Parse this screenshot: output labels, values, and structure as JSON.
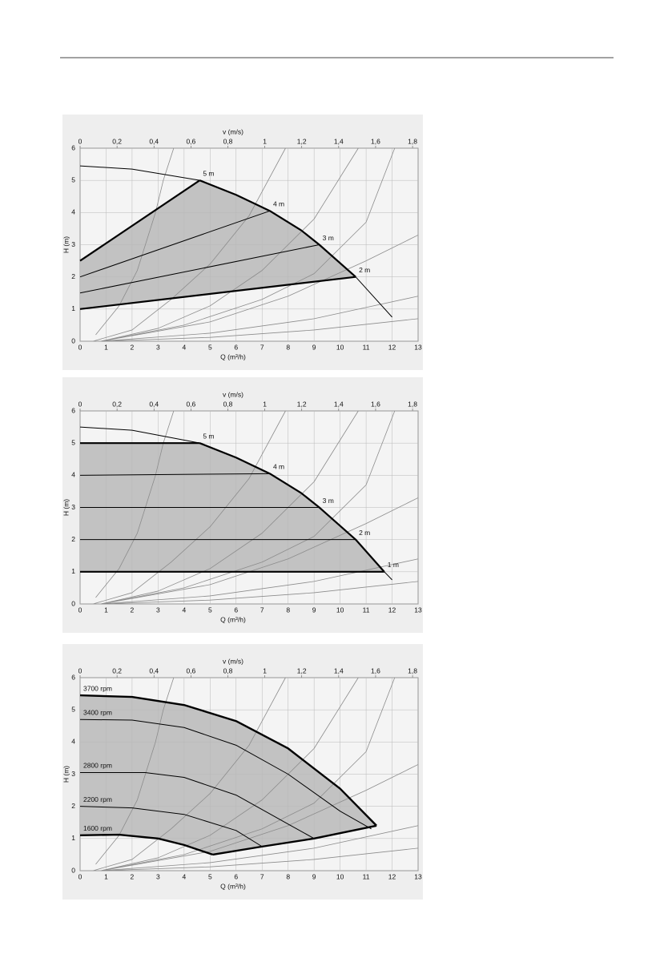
{
  "chart_data": [
    {
      "type": "line",
      "x2label": "v (m/s)",
      "xlabel": "Q (m³/h)",
      "ylabel": "H (m)",
      "xlim": [
        0,
        13
      ],
      "xticks": [
        0,
        1,
        2,
        3,
        4,
        5,
        6,
        7,
        8,
        9,
        10,
        11,
        12,
        13
      ],
      "x2lim": [
        0,
        1.83
      ],
      "x2ticks": [
        0,
        {
          "value": 0.2,
          "label": "0,2"
        },
        {
          "value": 0.4,
          "label": "0,4"
        },
        {
          "value": 0.6,
          "label": "0,6"
        },
        {
          "value": 0.8,
          "label": "0,8"
        },
        1,
        {
          "value": 1.2,
          "label": "1,2"
        },
        {
          "value": 1.4,
          "label": "1,4"
        },
        {
          "value": 1.6,
          "label": "1,6"
        },
        {
          "value": 1.8,
          "label": "1,8"
        }
      ],
      "ylim": [
        0,
        6
      ],
      "yticks": [
        0,
        1,
        2,
        3,
        4,
        5,
        6
      ],
      "grid": true,
      "region": {
        "x": [
          0,
          4.6,
          6,
          7.3,
          8.5,
          9.2,
          10.6,
          0
        ],
        "values": [
          2.5,
          5.0,
          4.55,
          4.05,
          3.45,
          3.0,
          2.0,
          1.0
        ],
        "color": "#c2c2c2"
      },
      "system_curves": [
        {
          "x": [
            0.6,
            1.5,
            2.2,
            2.9,
            3.2,
            3.6
          ],
          "values": [
            0.2,
            1.1,
            2.2,
            4.0,
            5.0,
            6.0
          ]
        },
        {
          "x": [
            0.5,
            2,
            3.5,
            5,
            6.5,
            7.9
          ],
          "values": [
            0,
            0.35,
            1.3,
            2.4,
            3.9,
            6.0
          ]
        },
        {
          "x": [
            0.8,
            3,
            5,
            7,
            9,
            10.7
          ],
          "values": [
            0,
            0.4,
            1.1,
            2.2,
            3.8,
            6.0
          ]
        },
        {
          "x": [
            0.8,
            4,
            7,
            9,
            11,
            12.1
          ],
          "values": [
            0,
            0.5,
            1.3,
            2.1,
            3.7,
            6.0
          ]
        },
        {
          "x": [
            0.8,
            5,
            8,
            11,
            13
          ],
          "values": [
            0,
            0.6,
            1.4,
            2.5,
            3.3
          ]
        },
        {
          "x": [
            0.8,
            5,
            9,
            13
          ],
          "values": [
            0,
            0.25,
            0.7,
            1.4
          ]
        },
        {
          "x": [
            0.8,
            5,
            9,
            13
          ],
          "values": [
            0,
            0.12,
            0.35,
            0.7
          ]
        }
      ],
      "system_color": "#8c8c8c",
      "series": [
        {
          "x": [
            0,
            2,
            4.6,
            6,
            7.3,
            8.5,
            9.2,
            10.6,
            12
          ],
          "values": [
            5.45,
            5.35,
            5.0,
            4.55,
            4.05,
            3.45,
            3.0,
            2.0,
            0.75
          ],
          "color": "#000000",
          "width": 1
        },
        {
          "name": "5 m",
          "x": [
            0,
            4.6
          ],
          "values": [
            2.5,
            5.0
          ],
          "color": "#000000",
          "width": 2.2
        },
        {
          "name": "4 m",
          "x": [
            0,
            7.3
          ],
          "values": [
            2.0,
            4.05
          ],
          "color": "#000000",
          "width": 1
        },
        {
          "name": "3 m",
          "x": [
            0,
            9.2
          ],
          "values": [
            1.5,
            3.0
          ],
          "color": "#000000",
          "width": 1
        },
        {
          "name": "2 m",
          "x": [
            0,
            10.6
          ],
          "values": [
            1.0,
            2.0
          ],
          "color": "#000000",
          "width": 2.2
        },
        {
          "x": [
            4.6,
            6,
            7.3,
            8.5,
            9.2,
            10.6
          ],
          "values": [
            5.0,
            4.55,
            4.05,
            3.45,
            3.0,
            2.0
          ],
          "color": "#000000",
          "width": 2.2
        }
      ]
    },
    {
      "type": "line",
      "x2label": "v (m/s)",
      "xlabel": "Q (m³/h)",
      "ylabel": "H (m)",
      "xlim": [
        0,
        13
      ],
      "xticks": [
        0,
        1,
        2,
        3,
        4,
        5,
        6,
        7,
        8,
        9,
        10,
        11,
        12,
        13
      ],
      "x2lim": [
        0,
        1.83
      ],
      "x2ticks": [
        0,
        {
          "value": 0.2,
          "label": "0,2"
        },
        {
          "value": 0.4,
          "label": "0,4"
        },
        {
          "value": 0.6,
          "label": "0,6"
        },
        {
          "value": 0.8,
          "label": "0,8"
        },
        1,
        {
          "value": 1.2,
          "label": "1,2"
        },
        {
          "value": 1.4,
          "label": "1,4"
        },
        {
          "value": 1.6,
          "label": "1,6"
        },
        {
          "value": 1.8,
          "label": "1,8"
        }
      ],
      "ylim": [
        0,
        6
      ],
      "yticks": [
        0,
        1,
        2,
        3,
        4,
        5,
        6
      ],
      "grid": true,
      "region": {
        "x": [
          0,
          4.6,
          6,
          7.3,
          8.5,
          9.2,
          10.6,
          11.7,
          0
        ],
        "values": [
          5.0,
          5.0,
          4.55,
          4.05,
          3.45,
          3.0,
          2.0,
          1.0,
          1.0
        ],
        "color": "#c2c2c2"
      },
      "system_curves": [
        {
          "x": [
            0.6,
            1.5,
            2.2,
            2.9,
            3.2,
            3.6
          ],
          "values": [
            0.2,
            1.1,
            2.2,
            4.0,
            5.0,
            6.0
          ]
        },
        {
          "x": [
            0.5,
            2,
            3.5,
            5,
            6.5,
            7.9
          ],
          "values": [
            0,
            0.35,
            1.3,
            2.4,
            3.9,
            6.0
          ]
        },
        {
          "x": [
            0.8,
            3,
            5,
            7,
            9,
            10.7
          ],
          "values": [
            0,
            0.4,
            1.1,
            2.2,
            3.8,
            6.0
          ]
        },
        {
          "x": [
            0.8,
            4,
            7,
            9,
            11,
            12.1
          ],
          "values": [
            0,
            0.5,
            1.3,
            2.1,
            3.7,
            6.0
          ]
        },
        {
          "x": [
            0.8,
            5,
            8,
            11,
            13
          ],
          "values": [
            0,
            0.6,
            1.4,
            2.5,
            3.3
          ]
        },
        {
          "x": [
            0.8,
            5,
            9,
            13
          ],
          "values": [
            0,
            0.25,
            0.7,
            1.4
          ]
        },
        {
          "x": [
            0.8,
            5,
            9,
            13
          ],
          "values": [
            0,
            0.12,
            0.35,
            0.7
          ]
        }
      ],
      "system_color": "#8c8c8c",
      "series": [
        {
          "x": [
            0,
            2,
            4.6,
            6,
            7.3,
            8.5,
            9.2,
            10.6,
            11.7,
            12
          ],
          "values": [
            5.5,
            5.4,
            5.0,
            4.55,
            4.05,
            3.45,
            3.0,
            2.0,
            1.0,
            0.75
          ],
          "color": "#000000",
          "width": 1
        },
        {
          "name": "5 m",
          "x": [
            0,
            4.6
          ],
          "values": [
            5.0,
            5.0
          ],
          "color": "#000000",
          "width": 2.2
        },
        {
          "name": "4 m",
          "x": [
            0,
            7.3
          ],
          "values": [
            4.0,
            4.05
          ],
          "color": "#000000",
          "width": 1
        },
        {
          "name": "3 m",
          "x": [
            0,
            9.2
          ],
          "values": [
            3.0,
            3.0
          ],
          "color": "#000000",
          "width": 1
        },
        {
          "name": "2 m",
          "x": [
            0,
            10.6
          ],
          "values": [
            2.0,
            2.0
          ],
          "color": "#000000",
          "width": 1
        },
        {
          "name": "1 m",
          "x": [
            0,
            11.7
          ],
          "values": [
            1.0,
            1.0
          ],
          "color": "#000000",
          "width": 2.2
        },
        {
          "x": [
            4.6,
            6,
            7.3,
            8.5,
            9.2,
            10.6,
            11.7
          ],
          "values": [
            5.0,
            4.55,
            4.05,
            3.45,
            3.0,
            2.0,
            1.0
          ],
          "color": "#000000",
          "width": 2.2
        }
      ]
    },
    {
      "type": "line",
      "x2label": "v (m/s)",
      "xlabel": "Q (m³/h)",
      "ylabel": "H (m)",
      "xlim": [
        0,
        13
      ],
      "xticks": [
        0,
        1,
        2,
        3,
        4,
        5,
        6,
        7,
        8,
        9,
        10,
        11,
        12,
        13
      ],
      "x2lim": [
        0,
        1.83
      ],
      "x2ticks": [
        0,
        {
          "value": 0.2,
          "label": "0,2"
        },
        {
          "value": 0.4,
          "label": "0,4"
        },
        {
          "value": 0.6,
          "label": "0,6"
        },
        {
          "value": 0.8,
          "label": "0,8"
        },
        1,
        {
          "value": 1.2,
          "label": "1,2"
        },
        {
          "value": 1.4,
          "label": "1,4"
        },
        {
          "value": 1.6,
          "label": "1,6"
        },
        {
          "value": 1.8,
          "label": "1,8"
        }
      ],
      "ylim": [
        0,
        6
      ],
      "yticks": [
        0,
        1,
        2,
        3,
        4,
        5,
        6
      ],
      "grid": true,
      "region": {
        "x": [
          0,
          2,
          4,
          6,
          8,
          10,
          11.4,
          9,
          7,
          5.1,
          4,
          3,
          1.5,
          0
        ],
        "values": [
          5.45,
          5.4,
          5.15,
          4.65,
          3.8,
          2.55,
          1.4,
          1.0,
          0.75,
          0.5,
          0.8,
          1.0,
          1.12,
          1.1
        ],
        "color": "#c2c2c2"
      },
      "system_curves": [
        {
          "x": [
            0.6,
            1.5,
            2.2,
            2.9,
            3.2,
            3.6
          ],
          "values": [
            0.2,
            1.1,
            2.2,
            4.0,
            5.0,
            6.0
          ]
        },
        {
          "x": [
            0.5,
            2,
            3.5,
            5,
            6.5,
            7.9
          ],
          "values": [
            0,
            0.35,
            1.3,
            2.4,
            3.9,
            6.0
          ]
        },
        {
          "x": [
            0.8,
            3,
            5,
            7,
            9,
            10.7
          ],
          "values": [
            0,
            0.4,
            1.1,
            2.2,
            3.8,
            6.0
          ]
        },
        {
          "x": [
            0.8,
            4,
            7,
            9,
            11,
            12.1
          ],
          "values": [
            0,
            0.5,
            1.3,
            2.1,
            3.7,
            6.0
          ]
        },
        {
          "x": [
            0.8,
            5,
            8,
            11,
            13
          ],
          "values": [
            0,
            0.6,
            1.4,
            2.5,
            3.3
          ]
        },
        {
          "x": [
            0.8,
            5,
            9,
            13
          ],
          "values": [
            0,
            0.25,
            0.7,
            1.4
          ]
        },
        {
          "x": [
            0.8,
            5,
            9,
            13
          ],
          "values": [
            0,
            0.12,
            0.35,
            0.7
          ]
        }
      ],
      "system_color": "#8c8c8c",
      "label_at": "start",
      "series": [
        {
          "name": "3700 rpm",
          "x": [
            0,
            2,
            4,
            6,
            8,
            10,
            11.4
          ],
          "values": [
            5.45,
            5.4,
            5.15,
            4.65,
            3.8,
            2.55,
            1.4
          ],
          "color": "#000000",
          "width": 2.4
        },
        {
          "name": "3400 rpm",
          "x": [
            0,
            2,
            4,
            6,
            8,
            10,
            11.2
          ],
          "values": [
            4.7,
            4.68,
            4.45,
            3.9,
            3.0,
            1.85,
            1.3
          ],
          "color": "#000000",
          "width": 1
        },
        {
          "name": "2800 rpm",
          "x": [
            0,
            1,
            2.5,
            4,
            6,
            8,
            9
          ],
          "values": [
            3.05,
            3.05,
            3.05,
            2.9,
            2.35,
            1.45,
            1.0
          ],
          "color": "#000000",
          "width": 1
        },
        {
          "name": "2200 rpm",
          "x": [
            0,
            2,
            4,
            6,
            7
          ],
          "values": [
            2.0,
            1.95,
            1.75,
            1.25,
            0.75
          ],
          "color": "#000000",
          "width": 1
        },
        {
          "name": "1600 rpm",
          "x": [
            0,
            1.5,
            3,
            4,
            5.1
          ],
          "values": [
            1.1,
            1.12,
            1.0,
            0.8,
            0.5
          ],
          "color": "#000000",
          "width": 2.4
        },
        {
          "x": [
            5.1,
            7,
            9,
            11.4
          ],
          "values": [
            0.5,
            0.75,
            1.0,
            1.4
          ],
          "color": "#000000",
          "width": 2.4
        }
      ]
    }
  ]
}
